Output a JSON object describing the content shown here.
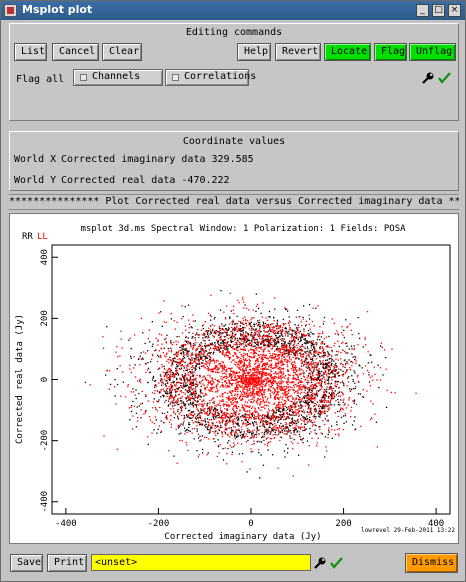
{
  "window": {
    "title": "Msplot plot",
    "buttons": [
      "_",
      "□",
      "×"
    ]
  },
  "editing": {
    "header": "Editing commands",
    "buttons": {
      "list": "List",
      "cancel": "Cancel",
      "clear": "Clear",
      "help": "Help",
      "revert": "Revert",
      "locate": "Locate",
      "flag": "Flag",
      "unflag": "Unflag"
    },
    "flag_all_label": "Flag all",
    "channels": "Channels",
    "correlations": "Correlations"
  },
  "coords": {
    "header": "Coordinate values",
    "x_label": "World X",
    "x_value": "Corrected imaginary data 329.585",
    "y_label": "World Y",
    "y_value": "Corrected real data -470.222"
  },
  "banner": "*************** Plot Corrected real data versus Corrected imaginary data ************",
  "colors": {
    "accent_green": "#00e000",
    "dismiss_orange": "#ff9a00",
    "field_yellow": "#ffff00",
    "series_rr": "#000000",
    "series_ll": "#ff0000"
  },
  "chart_data": {
    "type": "scatter",
    "title": "msplot 3d.ms Spectral Window: 1 Polarization: 1 Fields: POSA",
    "xlabel": "Corrected imaginary data (Jy)",
    "ylabel": "Corrected real data (Jy)",
    "xlim": [
      -430,
      430
    ],
    "ylim": [
      -440,
      440
    ],
    "xticks": [
      -400,
      -200,
      0,
      200,
      400
    ],
    "yticks": [
      -400,
      -200,
      0,
      200,
      400
    ],
    "series": [
      {
        "name": "RR",
        "color": "#000000"
      },
      {
        "name": "LL",
        "color": "#ff0000"
      }
    ],
    "annotation": "lowrevel 29-Feb-2011 13:22"
  },
  "bottom": {
    "save": "Save",
    "print": "Print",
    "field_value": "<unset>",
    "dismiss": "Dismiss"
  }
}
